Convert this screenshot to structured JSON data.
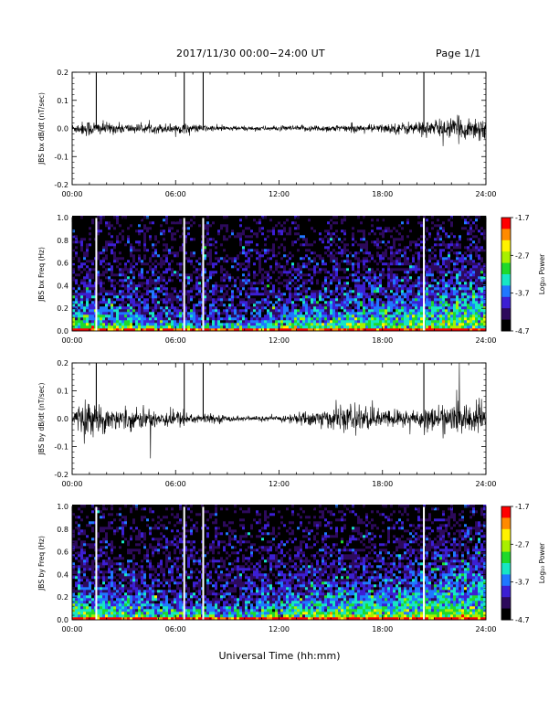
{
  "header": {
    "title": "2017/11/30  00:00−24:00 UT",
    "page": "Page 1/1"
  },
  "xaxis_title": "Universal Time (hh:mm)",
  "colors": {
    "trace": "#000000",
    "spectrogram_background": "#1a0a30",
    "colorscale": [
      "#000000",
      "#2d0a5c",
      "#3c1fd4",
      "#1f78ff",
      "#17e6c4",
      "#1fd92b",
      "#a8ef00",
      "#fff200",
      "#ff8a00",
      "#ff0000"
    ]
  },
  "chart_data": [
    {
      "type": "line",
      "name": "bx-dbdt",
      "ylabel": "JBS bx dB/dt (nT/sec)",
      "xlim": [
        0,
        24
      ],
      "ylim": [
        -0.2,
        0.2
      ],
      "xticks": [
        "00:00",
        "06:00",
        "12:00",
        "18:00",
        "24:00"
      ],
      "yticks": [
        "-0.2",
        "-0.1",
        "0.0",
        "0.1",
        "0.2"
      ],
      "spikes": [
        1.4,
        6.5,
        7.6,
        20.4
      ],
      "envelope": {
        "x": [
          0,
          1,
          2,
          4,
          6,
          7,
          8,
          10,
          12,
          14,
          16,
          18,
          20,
          22,
          24
        ],
        "y": [
          0.015,
          0.03,
          0.02,
          0.015,
          0.018,
          0.015,
          0.01,
          0.008,
          0.008,
          0.012,
          0.012,
          0.015,
          0.025,
          0.035,
          0.045
        ]
      }
    },
    {
      "type": "heatmap",
      "name": "bx-spectrogram",
      "ylabel": "JBS bx Freq (Hz)",
      "xlim": [
        0,
        24
      ],
      "ylim": [
        0,
        1.0
      ],
      "xticks": [
        "00:00",
        "06:00",
        "12:00",
        "18:00",
        "24:00"
      ],
      "yticks": [
        "0.0",
        "0.2",
        "0.4",
        "0.6",
        "0.8",
        "1.0"
      ],
      "colorbar": {
        "label": "Log₁₀ Power",
        "range": [
          -4.7,
          -1.7
        ],
        "ticks": [
          "-1.7",
          "-2.7",
          "-3.7",
          "-4.7"
        ]
      },
      "gaps": [
        1.4,
        6.5,
        7.6,
        20.4
      ],
      "activity": {
        "x": [
          0,
          1,
          3,
          5,
          7,
          9,
          11,
          13,
          15,
          17,
          19,
          21,
          22.5,
          24
        ],
        "y": [
          0.3,
          0.28,
          0.2,
          0.15,
          0.1,
          0.08,
          0.1,
          0.25,
          0.25,
          0.28,
          0.35,
          0.45,
          0.55,
          0.6
        ]
      }
    },
    {
      "type": "line",
      "name": "by-dbdt",
      "ylabel": "JBS by dB/dt (nT/sec)",
      "xlim": [
        0,
        24
      ],
      "ylim": [
        -0.2,
        0.2
      ],
      "xticks": [
        "00:00",
        "06:00",
        "12:00",
        "18:00",
        "24:00"
      ],
      "yticks": [
        "-0.2",
        "-0.1",
        "0.0",
        "0.1",
        "0.2"
      ],
      "spikes": [
        1.4,
        6.5,
        7.6,
        20.4
      ],
      "envelope": {
        "x": [
          0,
          1,
          2,
          4,
          6,
          7,
          8,
          10,
          12,
          14,
          15,
          16.5,
          18,
          20,
          22,
          24
        ],
        "y": [
          0.04,
          0.06,
          0.04,
          0.035,
          0.03,
          0.02,
          0.015,
          0.008,
          0.01,
          0.03,
          0.035,
          0.05,
          0.03,
          0.035,
          0.05,
          0.06
        ]
      }
    },
    {
      "type": "heatmap",
      "name": "by-spectrogram",
      "ylabel": "JBS by Freq (Hz)",
      "xlim": [
        0,
        24
      ],
      "ylim": [
        0,
        1.0
      ],
      "xticks": [
        "00:00",
        "06:00",
        "12:00",
        "18:00",
        "24:00"
      ],
      "yticks": [
        "0.0",
        "0.2",
        "0.4",
        "0.6",
        "0.8",
        "1.0"
      ],
      "colorbar": {
        "label": "Log₁₀ Power",
        "range": [
          -4.7,
          -1.7
        ],
        "ticks": [
          "-1.7",
          "-2.7",
          "-3.7",
          "-4.7"
        ]
      },
      "gaps": [
        1.4,
        6.5,
        7.6,
        20.4
      ],
      "activity": {
        "x": [
          0,
          1,
          3,
          5,
          7,
          9,
          11,
          13,
          15,
          17,
          19,
          21,
          22.5,
          24
        ],
        "y": [
          0.35,
          0.3,
          0.22,
          0.16,
          0.12,
          0.1,
          0.15,
          0.3,
          0.32,
          0.3,
          0.38,
          0.5,
          0.6,
          0.68
        ]
      }
    }
  ]
}
